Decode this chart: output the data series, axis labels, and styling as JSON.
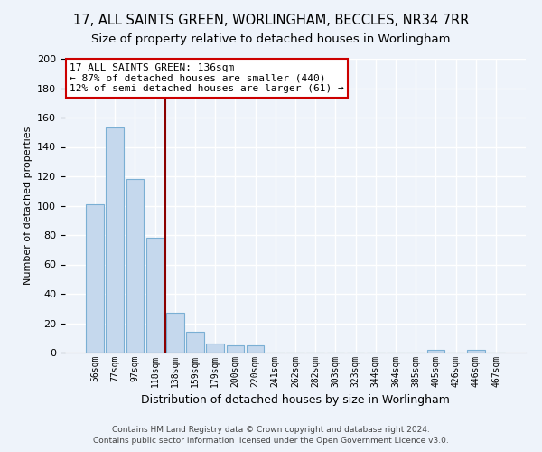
{
  "title": "17, ALL SAINTS GREEN, WORLINGHAM, BECCLES, NR34 7RR",
  "subtitle": "Size of property relative to detached houses in Worlingham",
  "xlabel": "Distribution of detached houses by size in Worlingham",
  "ylabel": "Number of detached properties",
  "bar_labels": [
    "56sqm",
    "77sqm",
    "97sqm",
    "118sqm",
    "138sqm",
    "159sqm",
    "179sqm",
    "200sqm",
    "220sqm",
    "241sqm",
    "262sqm",
    "282sqm",
    "303sqm",
    "323sqm",
    "344sqm",
    "364sqm",
    "385sqm",
    "405sqm",
    "426sqm",
    "446sqm",
    "467sqm"
  ],
  "bar_values": [
    101,
    153,
    118,
    78,
    27,
    14,
    6,
    5,
    5,
    0,
    0,
    0,
    0,
    0,
    0,
    0,
    0,
    2,
    0,
    2,
    0
  ],
  "bar_color": "#c5d8ed",
  "bar_edge_color": "#7aafd4",
  "highlight_line_color": "#8b0000",
  "annotation_title": "17 ALL SAINTS GREEN: 136sqm",
  "annotation_line1": "← 87% of detached houses are smaller (440)",
  "annotation_line2": "12% of semi-detached houses are larger (61) →",
  "annotation_box_color": "#ffffff",
  "annotation_box_edge": "#cc0000",
  "ylim": [
    0,
    200
  ],
  "yticks": [
    0,
    20,
    40,
    60,
    80,
    100,
    120,
    140,
    160,
    180,
    200
  ],
  "footer_line1": "Contains HM Land Registry data © Crown copyright and database right 2024.",
  "footer_line2": "Contains public sector information licensed under the Open Government Licence v3.0.",
  "bg_color": "#eef3fa",
  "plot_bg_color": "#eef3fa",
  "grid_color": "#d0dce8",
  "title_fontsize": 10.5,
  "subtitle_fontsize": 9.5
}
